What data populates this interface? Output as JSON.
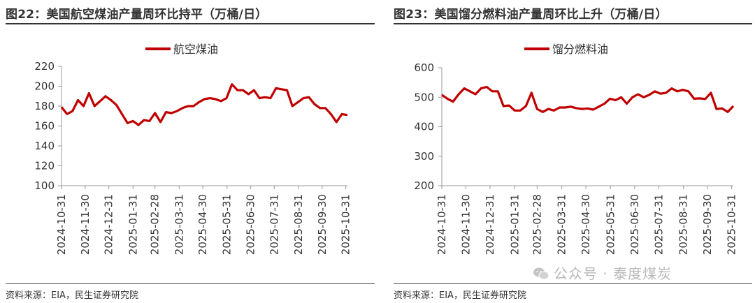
{
  "panels": [
    {
      "title": "图22：美国航空煤油产量周环比持平（万桶/日）",
      "source": "资料来源：EIA，民生证券研究院"
    },
    {
      "title": "图23：美国馏分燃料油产量周环比上升（万桶/日）",
      "source": "资料来源：EIA，民生证券研究院"
    }
  ],
  "watermark": "公众号 · 泰度煤炭",
  "chart_data": [
    {
      "type": "line",
      "title": "",
      "legend_position": "top-center",
      "ylim": [
        100,
        220
      ],
      "yticks": [
        100,
        120,
        140,
        160,
        180,
        200,
        220
      ],
      "x_ticks": [
        "2024-10-31",
        "2024-11-30",
        "2024-12-31",
        "2025-01-31",
        "2025-02-28",
        "2025-03-31",
        "2025-04-30",
        "2025-05-31",
        "2025-06-30",
        "2025-07-31",
        "2025-08-31",
        "2025-09-30",
        "2025-10-31"
      ],
      "x_range": [
        0,
        52
      ],
      "x_tick_positions": [
        0,
        4.3,
        8.6,
        13,
        17,
        21.4,
        25.7,
        30.1,
        34.4,
        38.7,
        43.1,
        47.4,
        51.7
      ],
      "color": "#c00000",
      "series": [
        {
          "name": "航空煤油",
          "values": [
            179,
            172,
            175,
            186,
            180,
            193,
            180,
            185,
            190,
            186,
            181,
            172,
            163,
            165,
            161,
            166,
            165,
            173,
            164,
            174,
            173,
            175,
            178,
            180,
            180,
            184,
            187,
            188,
            187,
            185,
            188,
            202,
            196,
            196,
            192,
            196,
            188,
            189,
            188,
            198,
            197,
            196,
            180,
            184,
            188,
            189,
            182,
            178,
            178,
            172,
            164,
            172,
            171
          ]
        }
      ]
    },
    {
      "type": "line",
      "title": "",
      "legend_position": "top-center",
      "ylim": [
        200,
        600
      ],
      "yticks": [
        200,
        300,
        400,
        500,
        600
      ],
      "x_ticks": [
        "2024-10-31",
        "2024-11-30",
        "2024-12-31",
        "2025-01-31",
        "2025-02-28",
        "2025-03-31",
        "2025-04-30",
        "2025-05-31",
        "2025-06-30",
        "2025-07-31",
        "2025-08-31",
        "2025-09-30",
        "2025-10-31"
      ],
      "x_range": [
        0,
        52
      ],
      "x_tick_positions": [
        0,
        4.3,
        8.6,
        13,
        17,
        21.4,
        25.7,
        30.1,
        34.4,
        38.7,
        43.1,
        47.4,
        51.7
      ],
      "color": "#c00000",
      "series": [
        {
          "name": "馏分燃料油",
          "values": [
            508,
            495,
            485,
            510,
            530,
            520,
            510,
            530,
            535,
            520,
            520,
            470,
            472,
            455,
            455,
            470,
            515,
            460,
            450,
            460,
            455,
            465,
            465,
            468,
            463,
            460,
            462,
            458,
            468,
            478,
            495,
            490,
            500,
            478,
            500,
            510,
            500,
            508,
            520,
            512,
            515,
            530,
            520,
            525,
            520,
            495,
            496,
            494,
            515,
            460,
            462,
            450,
            470
          ]
        }
      ]
    }
  ]
}
